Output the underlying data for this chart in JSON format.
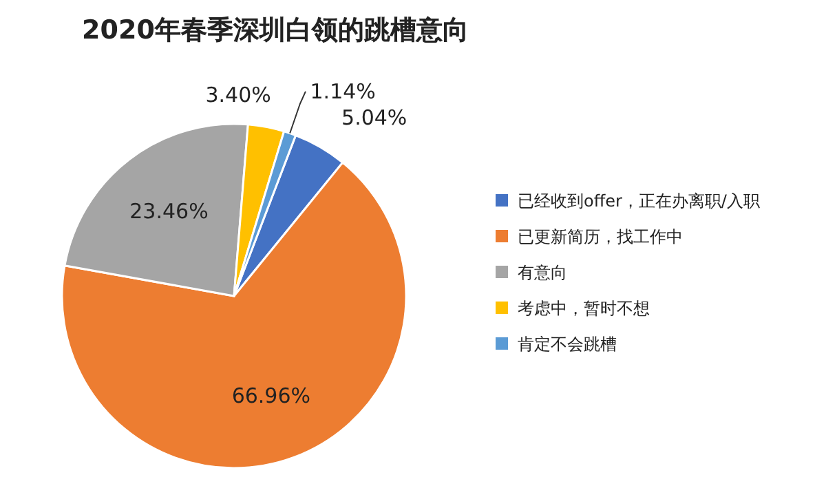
{
  "chart_data": {
    "type": "pie",
    "title": "2020年春季深圳白领的跳槽意向",
    "categories": [
      "已经收到offer，正在办离职/入职",
      "已更新简历，找工作中",
      "有意向",
      "考虑中，暂时不想",
      "肯定不会跳槽"
    ],
    "values": [
      5.04,
      66.96,
      23.46,
      3.4,
      1.14
    ],
    "value_labels": [
      "5.04%",
      "66.96%",
      "23.46%",
      "3.40%",
      "1.14%"
    ],
    "colors": [
      "#4472c4",
      "#ed7d31",
      "#a5a5a5",
      "#ffc000",
      "#5b9bd5"
    ],
    "legend": "right"
  }
}
